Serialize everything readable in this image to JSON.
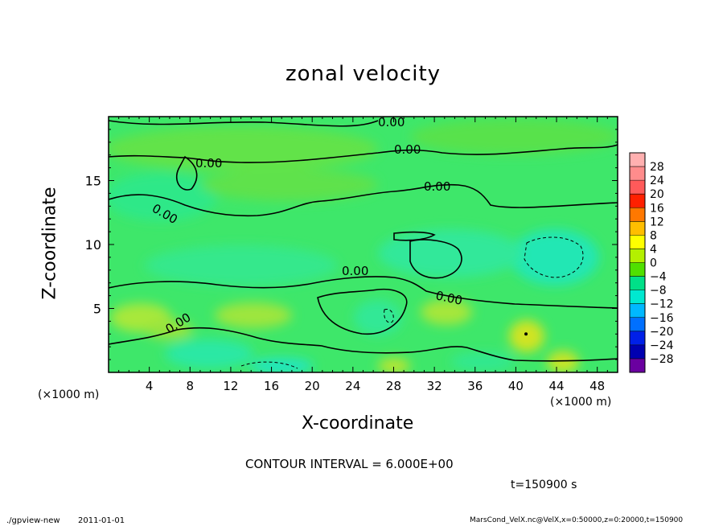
{
  "chart_data": {
    "type": "heatmap",
    "title": "zonal velocity",
    "xlabel": "X-coordinate",
    "ylabel": "Z-coordinate",
    "x_unit": "(×1000 m)",
    "y_unit": "(×1000 m)",
    "xlim": [
      0,
      50
    ],
    "ylim": [
      0,
      20
    ],
    "x_ticks": [
      4,
      8,
      12,
      16,
      20,
      24,
      28,
      32,
      36,
      40,
      44,
      48
    ],
    "y_ticks": [
      5,
      10,
      15
    ],
    "colorbar_levels": [
      "28",
      "24",
      "20",
      "16",
      "12",
      "8",
      "4",
      "0",
      "−4",
      "−8",
      "−12",
      "−16",
      "−20",
      "−24",
      "−28"
    ],
    "colorbar_colors": [
      "#ff8c8c",
      "#ff5a5a",
      "#ff2000",
      "#ff7800",
      "#ffbe00",
      "#ffff00",
      "#b4f000",
      "#50e000",
      "#00e088",
      "#00e8d0",
      "#00b8ff",
      "#0070ff",
      "#0020e8",
      "#0000b0",
      "#6a00a0"
    ],
    "contour_labels": [
      "0.00",
      "0.00",
      "0.00",
      "0.00",
      "0.00",
      "0.00",
      "0.00",
      "0.00"
    ],
    "footer": {
      "contour_interval": "CONTOUR INTERVAL = 6.000E+00",
      "time": "t=150900 s",
      "program": "./gpview-new",
      "date": "2011-01-01",
      "source": "MarsCond_VelX.nc@VelX,x=0:50000,z=0:20000,t=150900"
    }
  }
}
